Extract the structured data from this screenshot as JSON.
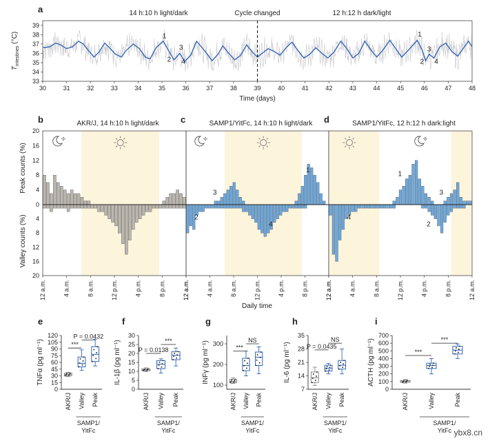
{
  "chart_data": [
    {
      "panel": "a",
      "type": "line",
      "ylabel_main": "T",
      "ylabel_sub": "intestines",
      "ylabel_unit": " (°C)",
      "xlabel": "Time (days)",
      "xlim": [
        30,
        48
      ],
      "ylim": [
        33,
        39.5
      ],
      "xticks": [
        "30",
        "31",
        "32",
        "33",
        "34",
        "35",
        "36",
        "37",
        "38",
        "39",
        "40",
        "41",
        "42",
        "43",
        "44",
        "45",
        "46",
        "47",
        "48"
      ],
      "yticks": [
        "33",
        "34",
        "35",
        "36",
        "37",
        "38",
        "39"
      ],
      "annotations": {
        "left_regime": "14 h:10 h light/dark",
        "change": "Cycle changed",
        "right_regime": "12 h:12 h dark/light"
      },
      "change_x": 39,
      "markers": [
        {
          "label": "1",
          "x": 35.1,
          "y": 37.6
        },
        {
          "label": "3",
          "x": 35.8,
          "y": 36.4
        },
        {
          "label": "2",
          "x": 35.3,
          "y": 35.1
        },
        {
          "label": "4",
          "x": 35.9,
          "y": 34.9
        },
        {
          "label": "1",
          "x": 45.8,
          "y": 37.8
        },
        {
          "label": "3",
          "x": 46.2,
          "y": 36.2
        },
        {
          "label": "2",
          "x": 45.9,
          "y": 34.9
        },
        {
          "label": "4",
          "x": 46.5,
          "y": 34.9
        }
      ],
      "series": [
        {
          "name": "smoothed",
          "values": [
            [
              30,
              36.6
            ],
            [
              30.3,
              36.7
            ],
            [
              30.55,
              37.1
            ],
            [
              30.75,
              36.9
            ],
            [
              31,
              36.5
            ],
            [
              31.25,
              36.7
            ],
            [
              31.5,
              37.3
            ],
            [
              31.7,
              37.0
            ],
            [
              31.95,
              36.2
            ],
            [
              32.15,
              35.6
            ],
            [
              32.35,
              36.1
            ],
            [
              32.6,
              37.1
            ],
            [
              32.8,
              36.6
            ],
            [
              33.05,
              35.9
            ],
            [
              33.3,
              35.6
            ],
            [
              33.5,
              36.3
            ],
            [
              33.8,
              37.0
            ],
            [
              34.05,
              36.5
            ],
            [
              34.3,
              35.6
            ],
            [
              34.5,
              35.4
            ],
            [
              34.75,
              36.6
            ],
            [
              35.05,
              37.3
            ],
            [
              35.3,
              36.2
            ],
            [
              35.5,
              35.3
            ],
            [
              35.75,
              36.0
            ],
            [
              35.95,
              35.1
            ],
            [
              36.2,
              35.8
            ],
            [
              36.45,
              37.3
            ],
            [
              36.65,
              36.7
            ],
            [
              36.9,
              35.9
            ],
            [
              37.1,
              35.2
            ],
            [
              37.35,
              35.9
            ],
            [
              37.55,
              36.8
            ],
            [
              37.8,
              36.0
            ],
            [
              38.05,
              35.3
            ],
            [
              38.3,
              35.8
            ],
            [
              38.55,
              36.9
            ],
            [
              38.8,
              36.1
            ],
            [
              39.0,
              35.6
            ],
            [
              39.2,
              36.0
            ],
            [
              39.45,
              36.5
            ],
            [
              39.7,
              36.2
            ],
            [
              39.95,
              35.8
            ],
            [
              40.2,
              36.6
            ],
            [
              40.45,
              37.2
            ],
            [
              40.7,
              36.3
            ],
            [
              40.95,
              35.5
            ],
            [
              41.2,
              35.9
            ],
            [
              41.45,
              36.6
            ],
            [
              41.7,
              36.0
            ],
            [
              41.95,
              35.5
            ],
            [
              42.2,
              36.1
            ],
            [
              42.5,
              37.3
            ],
            [
              42.75,
              36.5
            ],
            [
              43.0,
              35.5
            ],
            [
              43.25,
              36.0
            ],
            [
              43.5,
              37.3
            ],
            [
              43.75,
              36.4
            ],
            [
              44.0,
              35.6
            ],
            [
              44.25,
              36.3
            ],
            [
              44.55,
              37.4
            ],
            [
              44.8,
              36.5
            ],
            [
              45.05,
              35.6
            ],
            [
              45.35,
              36.4
            ],
            [
              45.7,
              37.4
            ],
            [
              45.9,
              36.4
            ],
            [
              46.05,
              35.2
            ],
            [
              46.2,
              35.9
            ],
            [
              46.4,
              35.5
            ],
            [
              46.65,
              36.7
            ],
            [
              46.9,
              37.1
            ],
            [
              47.15,
              36.2
            ],
            [
              47.4,
              35.7
            ],
            [
              47.65,
              36.6
            ],
            [
              47.85,
              37.3
            ],
            [
              48,
              36.7
            ]
          ]
        }
      ]
    },
    {
      "panel": "b",
      "type": "bar",
      "title": "AKR/J, 14 h:10 h light/dark",
      "color": "#bbb6ae",
      "peak": [
        8,
        6,
        3,
        8,
        6,
        5,
        4,
        3,
        4,
        3,
        3,
        2,
        1,
        1,
        0,
        0,
        0,
        0,
        0,
        0,
        0,
        0,
        0,
        0,
        0,
        0,
        0,
        0,
        0,
        0,
        0,
        0,
        0,
        0,
        0,
        1,
        2,
        3,
        3,
        4,
        3,
        2
      ],
      "valley": [
        1,
        1,
        2,
        1,
        1,
        1,
        1,
        2,
        1,
        1,
        1,
        1,
        1,
        1,
        1,
        1,
        2,
        2,
        3,
        4,
        5,
        6,
        8,
        11,
        14,
        10,
        7,
        5,
        4,
        3,
        2,
        2,
        1,
        1,
        1,
        1,
        1,
        1,
        1,
        1,
        1,
        1
      ],
      "shade": [
        6.5,
        19.5
      ],
      "markers": []
    },
    {
      "panel": "c",
      "type": "bar",
      "title": "SAMP1/YitFc, 14 h:10 h light/dark",
      "color": "#6ba9e0",
      "peak": [
        0,
        0,
        0,
        0,
        0,
        0,
        0,
        0,
        0,
        1,
        1,
        2,
        3,
        4,
        5,
        6,
        4,
        2,
        1,
        0,
        0,
        0,
        0,
        0,
        0,
        0,
        0,
        0,
        0,
        0,
        0,
        0,
        0,
        0,
        0,
        1,
        3,
        5,
        8,
        11,
        10,
        8,
        6,
        3,
        1,
        0
      ],
      "valley": [
        8,
        6,
        7,
        3,
        2,
        2,
        1,
        1,
        1,
        1,
        1,
        1,
        1,
        1,
        1,
        1,
        1,
        1,
        2,
        2,
        3,
        4,
        5,
        7,
        8,
        9,
        8,
        7,
        5,
        4,
        3,
        2,
        2,
        1,
        1,
        1,
        1,
        1,
        1,
        0,
        0,
        0,
        0,
        0,
        0,
        0
      ],
      "shade": [
        6.5,
        19.5
      ],
      "markers": [
        {
          "label": "1",
          "kind": "peak",
          "bin": 41
        },
        {
          "label": "3",
          "kind": "peak",
          "bin": 11
        },
        {
          "label": "2",
          "kind": "valley",
          "bin": 5
        },
        {
          "label": "4",
          "kind": "valley",
          "bin": 29
        }
      ]
    },
    {
      "panel": "d",
      "type": "bar",
      "title": "SAMP1/YitFc, 12 h:12 h dark:light",
      "color": "#6ba9e0",
      "peak": [
        0,
        0,
        0,
        0,
        0,
        0,
        0,
        0,
        0,
        0,
        0,
        0,
        0,
        0,
        0,
        0,
        0,
        0,
        0,
        0,
        1,
        2,
        4,
        5,
        7,
        8,
        11,
        12,
        7,
        5,
        3,
        2,
        1,
        0,
        0,
        0,
        1,
        2,
        3,
        4,
        6,
        2,
        1,
        1,
        1
      ],
      "valley": [
        3,
        14,
        16,
        10,
        7,
        4,
        3,
        2,
        2,
        1,
        1,
        1,
        1,
        1,
        1,
        1,
        1,
        1,
        1,
        1,
        1,
        0,
        0,
        0,
        0,
        0,
        0,
        0,
        0,
        1,
        1,
        2,
        3,
        4,
        6,
        8,
        5,
        3,
        2,
        1,
        1,
        1,
        1,
        0,
        0
      ],
      "shade_left": [
        0,
        8.5
      ],
      "shade_right": [
        20.5,
        24
      ],
      "markers": [
        {
          "label": "1",
          "kind": "peak",
          "bin": 24
        },
        {
          "label": "3",
          "kind": "peak",
          "bin": 37
        },
        {
          "label": "2",
          "kind": "valley",
          "bin": 33
        },
        {
          "label": "4",
          "kind": "valley",
          "bin": 8
        }
      ]
    },
    {
      "panel": "shared_bcd",
      "ylabel_top": "Peak counts (%)",
      "ylabel_bottom": "Valley counts (%)",
      "yticks_top": [
        "20",
        "16",
        "12",
        "8",
        "4",
        "0"
      ],
      "yticks_bottom": [
        "4",
        "8",
        "12",
        "16",
        "20"
      ],
      "xticks": [
        "12 a.m.",
        "4 a.m.",
        "8 a.m.",
        "12 p.m.",
        "4 p.m.",
        "8 p.m.",
        "12 a.m."
      ],
      "xlabel": "Daily time"
    },
    {
      "panel": "e",
      "type": "box",
      "ylabel": "TNFα (pg ml⁻¹)",
      "ylim": [
        0,
        120
      ],
      "yticks": [
        "0",
        "15",
        "30",
        "45",
        "60",
        "75",
        "90",
        "105",
        "120"
      ],
      "categories": [
        "AKR/J",
        "Valley",
        "Peak"
      ],
      "group_label": "SAMP1/ YitFc",
      "boxes": [
        {
          "min": 28,
          "q1": 30,
          "med": 33,
          "q3": 36,
          "max": 38,
          "color": "#888888"
        },
        {
          "min": 42,
          "q1": 50,
          "med": 58,
          "q3": 72,
          "max": 88,
          "color": "#2f66b3"
        },
        {
          "min": 52,
          "q1": 62,
          "med": 78,
          "q3": 95,
          "max": 112,
          "color": "#2f66b3"
        }
      ],
      "stats": [
        {
          "text": "***",
          "from": 0,
          "to": 1,
          "y": 92
        },
        {
          "text": "P = 0.0432",
          "from": 1,
          "to": 2,
          "y": 110
        }
      ]
    },
    {
      "panel": "f",
      "type": "box",
      "ylabel": "IL-1β (pg ml⁻¹)",
      "ylim": [
        0,
        30
      ],
      "yticks": [
        "0",
        "5",
        "10",
        "15",
        "20",
        "25",
        "30"
      ],
      "categories": [
        "AKR/J",
        "Valley",
        "Peak"
      ],
      "group_label": "SAMP1/ YitFc",
      "boxes": [
        {
          "min": 9.8,
          "q1": 10.4,
          "med": 10.8,
          "q3": 11.4,
          "max": 12,
          "color": "#888888"
        },
        {
          "min": 9,
          "q1": 11.5,
          "med": 14,
          "q3": 16,
          "max": 17,
          "color": "#2f66b3"
        },
        {
          "min": 13,
          "q1": 16.5,
          "med": 19,
          "q3": 21,
          "max": 23,
          "color": "#2f66b3"
        }
      ],
      "stats": [
        {
          "text": "P = 0.0138",
          "from": 0,
          "to": 1,
          "y": 20
        },
        {
          "text": "***",
          "from": 1,
          "to": 2,
          "y": 25
        }
      ]
    },
    {
      "panel": "g",
      "type": "box",
      "ylabel": "INFγ (pg ml⁻¹)",
      "ylim": [
        80,
        340
      ],
      "yticks": [
        "100",
        "200",
        "300"
      ],
      "categories": [
        "AKR/J",
        "Valley",
        "Peak"
      ],
      "group_label": "SAMP1/ YitFc",
      "boxes": [
        {
          "min": 108,
          "q1": 112,
          "med": 118,
          "q3": 128,
          "max": 135,
          "color": "#888888"
        },
        {
          "min": 145,
          "q1": 170,
          "med": 195,
          "q3": 230,
          "max": 265,
          "color": "#2f66b3"
        },
        {
          "min": 155,
          "q1": 195,
          "med": 235,
          "q3": 260,
          "max": 285,
          "color": "#2f66b3"
        }
      ],
      "stats": [
        {
          "text": "***",
          "from": 0,
          "to": 1,
          "y": 265
        },
        {
          "text": "NS",
          "from": 1,
          "to": 2,
          "y": 300
        }
      ]
    },
    {
      "panel": "h",
      "type": "box",
      "ylabel": "IL-6 (pg ml⁻¹)",
      "ylim": [
        7,
        35
      ],
      "yticks": [
        "7",
        "14",
        "21",
        "28",
        "35"
      ],
      "categories": [
        "AKR/J",
        "Valley",
        "Peak"
      ],
      "group_label": "SAMP1/ YitFc",
      "boxes": [
        {
          "min": 9,
          "q1": 10.5,
          "med": 13,
          "q3": 16,
          "max": 18.5,
          "color": "#888888"
        },
        {
          "min": 15,
          "q1": 16.5,
          "med": 18,
          "q3": 19.5,
          "max": 20.5,
          "color": "#2f66b3"
        },
        {
          "min": 15,
          "q1": 17.5,
          "med": 19.5,
          "q3": 22,
          "max": 28,
          "color": "#2f66b3"
        }
      ],
      "stats": [
        {
          "text": "P = 0.0435",
          "from": 0,
          "to": 1,
          "y": 27.5
        },
        {
          "text": "NS",
          "from": 1,
          "to": 2,
          "y": 31
        }
      ]
    },
    {
      "panel": "i",
      "type": "box",
      "ylabel": "ACTH (pg ml⁻¹)",
      "ylim": [
        0,
        700
      ],
      "yticks": [
        "0",
        "100",
        "200",
        "300",
        "400",
        "500",
        "600",
        "700"
      ],
      "categories": [
        "AKR/J",
        "Valley",
        "Peak"
      ],
      "group_label": "SAMP1/ YitFc",
      "boxes": [
        {
          "min": 80,
          "q1": 90,
          "med": 105,
          "q3": 115,
          "max": 130,
          "color": "#888888"
        },
        {
          "min": 200,
          "q1": 270,
          "med": 310,
          "q3": 340,
          "max": 400,
          "color": "#2f66b3"
        },
        {
          "min": 400,
          "q1": 460,
          "med": 510,
          "q3": 560,
          "max": 590,
          "color": "#2f66b3"
        }
      ],
      "stats": [
        {
          "text": "***",
          "from": 0,
          "to": 1,
          "y": 440
        },
        {
          "text": "***",
          "from": 1,
          "to": 2,
          "y": 600
        }
      ]
    }
  ],
  "panel_letters": [
    "a",
    "b",
    "c",
    "d",
    "e",
    "f",
    "g",
    "h",
    "i"
  ],
  "icons": {
    "moon_stars": "moon-stars-icon",
    "sun": "sun-icon"
  },
  "watermark": "ybx8.cn"
}
